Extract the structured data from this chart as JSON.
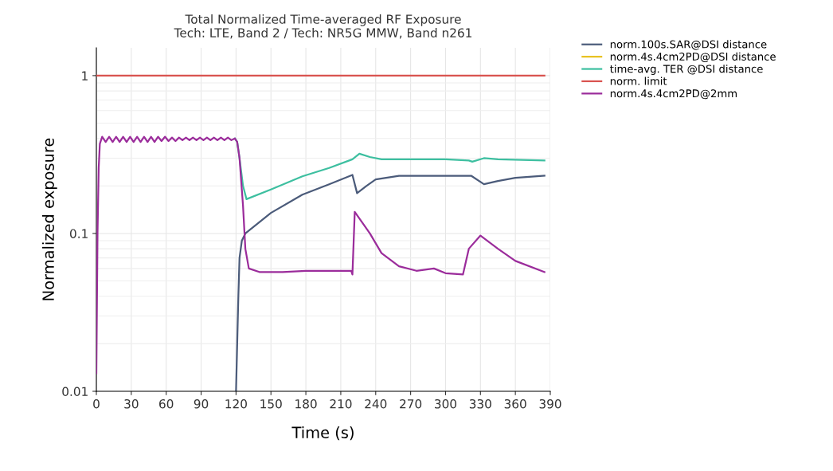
{
  "chart_data": {
    "type": "line",
    "title": "Total Normalized Time-averaged RF Exposure",
    "subtitle": "Tech: LTE, Band 2 / Tech: NR5G MMW, Band n261",
    "xlabel": "Time (s)",
    "ylabel": "Normalized exposure",
    "log": "y",
    "grid": true,
    "legend": "top right",
    "marker": "none",
    "line_style": "solid",
    "xlim": [
      0,
      390
    ],
    "xticks": [
      0,
      30,
      60,
      90,
      120,
      150,
      180,
      210,
      240,
      270,
      300,
      330,
      360,
      390
    ],
    "ylim": [
      0.01,
      1.5
    ],
    "yticks": [
      0.01,
      0.1,
      1
    ],
    "series": [
      {
        "name": "norm.100s.SAR@DSI distance",
        "color": "#4b5b7a",
        "x": [
          120,
          121,
          122,
          123,
          125,
          128,
          150,
          177,
          200,
          220,
          224,
          232,
          240,
          260,
          322,
          333,
          345,
          360,
          385
        ],
        "values": [
          0.01,
          0.02,
          0.04,
          0.07,
          0.09,
          0.1,
          0.135,
          0.176,
          0.205,
          0.235,
          0.18,
          0.2,
          0.22,
          0.232,
          0.232,
          0.205,
          0.215,
          0.225,
          0.232
        ]
      },
      {
        "name": "norm.4s.4cm2PD@DSI distance",
        "color": "#e8c21f"
      },
      {
        "name": "time-avg. TER @DSI distance",
        "color": "#3dbfa0",
        "x": [
          119,
          121,
          123,
          126,
          129,
          150,
          177,
          200,
          220,
          226,
          235,
          245,
          300,
          320,
          323,
          333,
          345,
          385
        ],
        "values": [
          0.4,
          0.38,
          0.3,
          0.2,
          0.165,
          0.19,
          0.23,
          0.26,
          0.295,
          0.32,
          0.305,
          0.295,
          0.295,
          0.29,
          0.285,
          0.3,
          0.295,
          0.29
        ]
      },
      {
        "name": "norm. limit",
        "color": "#d9534f",
        "x": [
          0,
          385
        ],
        "values": [
          1,
          1
        ]
      },
      {
        "name": "norm.4s.4cm2PD@2mm",
        "color": "#9b2c9b",
        "x": [
          0,
          1,
          2,
          3,
          5,
          8,
          11,
          14,
          17,
          20,
          23,
          26,
          29,
          32,
          35,
          38,
          41,
          44,
          47,
          50,
          53,
          56,
          59,
          62,
          65,
          68,
          71,
          74,
          77,
          80,
          83,
          86,
          89,
          92,
          95,
          98,
          101,
          104,
          107,
          110,
          113,
          116,
          119,
          121,
          123,
          126,
          128,
          131,
          140,
          160,
          180,
          200,
          219,
          220,
          222,
          235,
          245,
          260,
          275,
          290,
          300,
          315,
          320,
          330,
          345,
          360,
          385
        ],
        "values": [
          0.013,
          0.1,
          0.26,
          0.37,
          0.41,
          0.38,
          0.41,
          0.38,
          0.41,
          0.38,
          0.41,
          0.38,
          0.41,
          0.38,
          0.41,
          0.38,
          0.41,
          0.38,
          0.41,
          0.38,
          0.41,
          0.385,
          0.41,
          0.385,
          0.405,
          0.385,
          0.405,
          0.39,
          0.405,
          0.39,
          0.405,
          0.39,
          0.405,
          0.39,
          0.405,
          0.39,
          0.405,
          0.39,
          0.405,
          0.39,
          0.405,
          0.39,
          0.4,
          0.38,
          0.3,
          0.15,
          0.08,
          0.06,
          0.057,
          0.057,
          0.058,
          0.058,
          0.058,
          0.055,
          0.137,
          0.1,
          0.075,
          0.062,
          0.058,
          0.06,
          0.056,
          0.055,
          0.08,
          0.097,
          0.08,
          0.067,
          0.057
        ]
      }
    ]
  }
}
